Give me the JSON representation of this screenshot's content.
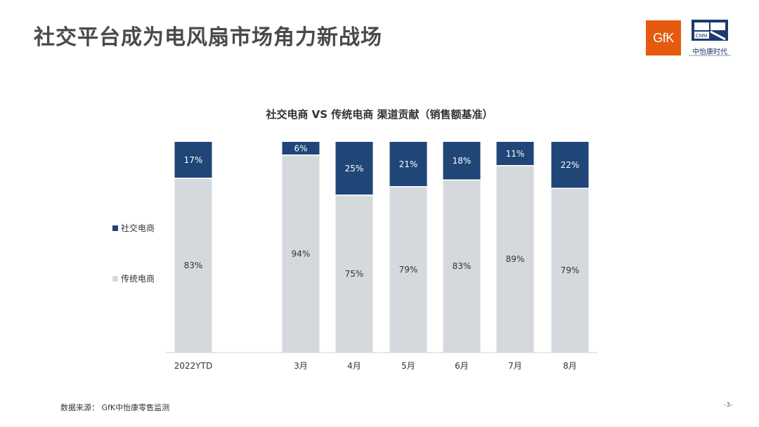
{
  "header": {
    "title": "社交平台成为电风扇市场角力新战场",
    "gfk_logo": "GfK",
    "cmm_logo": "CMM",
    "cmm_name": "中怡康时代"
  },
  "colors": {
    "social": "#1f4677",
    "traditional": "#d5d9de",
    "accent": "#e55a0f"
  },
  "chart_data": {
    "type": "bar",
    "stacked": true,
    "percent_stacked": true,
    "title": "社交电商 VS 传统电商 渠道贡献（销售额基准）",
    "categories": [
      "2022YTD",
      "3月",
      "4月",
      "5月",
      "6月",
      "7月",
      "8月"
    ],
    "series": [
      {
        "name": "社交电商",
        "values": [
          17,
          6,
          25,
          21,
          18,
          11,
          22
        ],
        "labels": [
          "17%",
          "6%",
          "25%",
          "21%",
          "18%",
          "11%",
          "22%"
        ]
      },
      {
        "name": "传统电商",
        "values": [
          83,
          94,
          75,
          79,
          83,
          89,
          79
        ],
        "labels": [
          "83%",
          "94%",
          "75%",
          "79%",
          "83%",
          "89%",
          "79%"
        ]
      }
    ],
    "ylim": [
      0,
      100
    ],
    "legend_position": "left",
    "grid": false
  },
  "footer": {
    "source": "数据来源： GfK中怡康零售监测",
    "page": "-3-"
  }
}
